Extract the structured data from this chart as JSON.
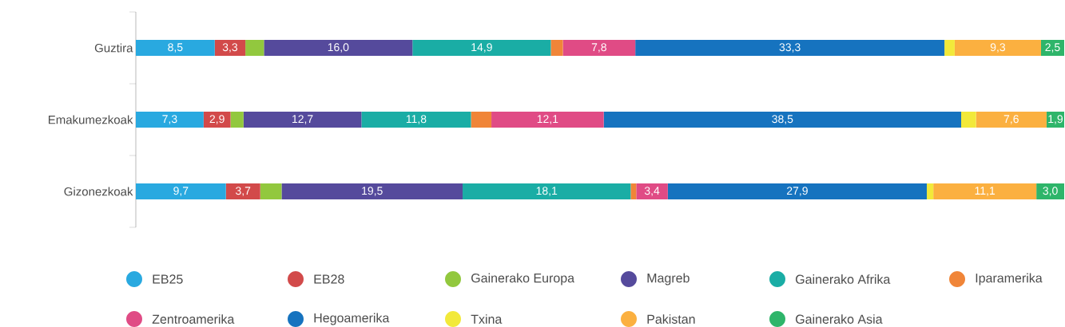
{
  "chart_data": {
    "type": "bar",
    "orientation": "horizontal",
    "stacked": true,
    "categories": [
      "Guztira",
      "Emakumezkoak",
      "Gizonezkoak"
    ],
    "tick_labels": "y",
    "legend": "bottom",
    "series": [
      {
        "name": "EB25",
        "color": "#29a9e0",
        "values": [
          8.5,
          7.3,
          9.7
        ],
        "value_labels": [
          "8,5",
          "7,3",
          "9,7"
        ]
      },
      {
        "name": "EB28",
        "color": "#d24a4a",
        "values": [
          3.3,
          2.9,
          3.7
        ],
        "value_labels": [
          "3,3",
          "2,9",
          "3,7"
        ]
      },
      {
        "name": "Gainerako Europa",
        "color": "#92c83e",
        "values": [
          2.0,
          1.4,
          2.3
        ]
      },
      {
        "name": "Magreb",
        "color": "#554a9c",
        "values": [
          16.0,
          12.7,
          19.5
        ],
        "value_labels": [
          "16,0",
          "12,7",
          "19,5"
        ]
      },
      {
        "name": "Gainerako Afrika",
        "color": "#1aada5",
        "values": [
          14.9,
          11.8,
          18.1
        ],
        "value_labels": [
          "14,9",
          "11,8",
          "18,1"
        ]
      },
      {
        "name": "Iparamerika",
        "color": "#f08538",
        "values": [
          1.3,
          2.2,
          0.6
        ]
      },
      {
        "name": "Zentroamerika",
        "color": "#e04b85",
        "values": [
          7.8,
          12.1,
          3.4
        ],
        "value_labels": [
          "7,8",
          "12,1",
          "3,4"
        ]
      },
      {
        "name": "Hegoamerika",
        "color": "#1673bf",
        "values": [
          33.3,
          38.5,
          27.9
        ],
        "value_labels": [
          "33,3",
          "38,5",
          "27,9"
        ]
      },
      {
        "name": "Txina",
        "color": "#f2e93a",
        "values": [
          1.1,
          1.6,
          0.7
        ]
      },
      {
        "name": "Pakistan",
        "color": "#fbb040",
        "values": [
          9.3,
          7.6,
          11.1
        ],
        "value_labels": [
          "9,3",
          "7,6",
          "11,1"
        ]
      },
      {
        "name": "Gainerako Asia",
        "color": "#2eb56a",
        "values": [
          2.5,
          1.9,
          3.0
        ],
        "value_labels": [
          "2,5",
          "1,9",
          "3,0"
        ]
      }
    ]
  }
}
